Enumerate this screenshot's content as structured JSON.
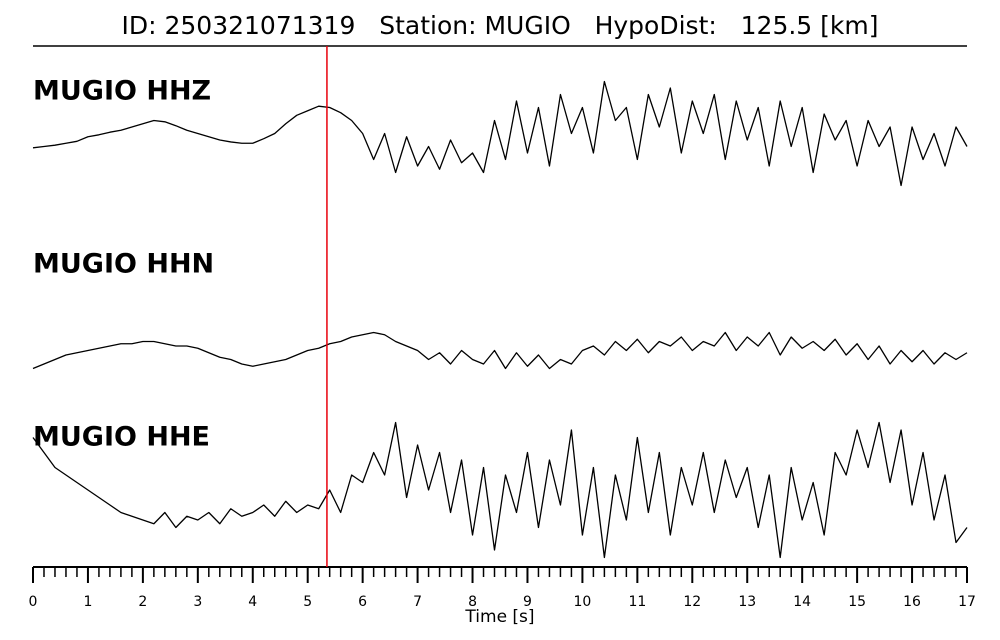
{
  "chart_data": {
    "type": "line",
    "title": "ID: 250321071319   Station: MUGIO   HypoDist:   125.5 [km]",
    "xlabel": "Time [s]",
    "xlim": [
      0,
      17
    ],
    "xticks": [
      0,
      1,
      2,
      3,
      4,
      5,
      6,
      7,
      8,
      9,
      10,
      11,
      12,
      13,
      14,
      15,
      16,
      17
    ],
    "x": [
      0,
      0.2,
      0.4,
      0.6,
      0.8,
      1,
      1.2,
      1.4,
      1.6,
      1.8,
      2,
      2.2,
      2.4,
      2.6,
      2.8,
      3,
      3.2,
      3.4,
      3.6,
      3.8,
      4,
      4.2,
      4.4,
      4.6,
      4.8,
      5,
      5.2,
      5.4,
      5.6,
      5.8,
      6,
      6.2,
      6.4,
      6.6,
      6.8,
      7,
      7.2,
      7.4,
      7.6,
      7.8,
      8,
      8.2,
      8.4,
      8.6,
      8.8,
      9,
      9.2,
      9.4,
      9.6,
      9.8,
      10,
      10.2,
      10.4,
      10.6,
      10.8,
      11,
      11.2,
      11.4,
      11.6,
      11.8,
      12,
      12.2,
      12.4,
      12.6,
      12.8,
      13,
      13.2,
      13.4,
      13.6,
      13.8,
      14,
      14.2,
      14.4,
      14.6,
      14.8,
      15,
      15.2,
      15.4,
      15.6,
      15.8,
      16,
      16.2,
      16.4,
      16.6,
      16.8,
      17
    ],
    "label_color": "#4c990c",
    "marker_time": 5.35,
    "marker_color": "#e8000b",
    "series": [
      {
        "name": "MUGIO HHZ",
        "color": "#000000",
        "ylim": [
          -1,
          1
        ],
        "values": [
          -0.12,
          -0.1,
          -0.08,
          -0.05,
          -0.02,
          0.05,
          0.08,
          0.12,
          0.15,
          0.2,
          0.25,
          0.3,
          0.28,
          0.22,
          0.15,
          0.1,
          0.05,
          0,
          -0.03,
          -0.05,
          -0.05,
          0.02,
          0.1,
          0.25,
          0.38,
          0.45,
          0.52,
          0.5,
          0.42,
          0.3,
          0.1,
          -0.3,
          0.1,
          -0.5,
          0.05,
          -0.4,
          -0.1,
          -0.45,
          0.0,
          -0.35,
          -0.2,
          -0.5,
          0.3,
          -0.3,
          0.6,
          -0.2,
          0.5,
          -0.4,
          0.7,
          0.1,
          0.5,
          -0.2,
          0.9,
          0.3,
          0.5,
          -0.3,
          0.7,
          0.2,
          0.8,
          -0.2,
          0.6,
          0.1,
          0.7,
          -0.3,
          0.6,
          0.0,
          0.5,
          -0.4,
          0.6,
          -0.1,
          0.5,
          -0.5,
          0.4,
          0.0,
          0.3,
          -0.4,
          0.3,
          -0.1,
          0.2,
          -0.7,
          0.2,
          -0.3,
          0.1,
          -0.4,
          0.2,
          -0.1
        ]
      },
      {
        "name": "MUGIO HHN",
        "color": "#000000",
        "ylim": [
          -1,
          1
        ],
        "values": [
          -0.3,
          -0.2,
          -0.1,
          0,
          0.05,
          0.1,
          0.15,
          0.2,
          0.25,
          0.25,
          0.3,
          0.3,
          0.25,
          0.2,
          0.2,
          0.15,
          0.05,
          -0.05,
          -0.1,
          -0.2,
          -0.25,
          -0.2,
          -0.15,
          -0.1,
          0,
          0.1,
          0.15,
          0.25,
          0.3,
          0.4,
          0.45,
          0.5,
          0.45,
          0.3,
          0.2,
          0.1,
          -0.1,
          0.05,
          -0.2,
          0.1,
          -0.1,
          -0.2,
          0.1,
          -0.3,
          0.05,
          -0.25,
          0,
          -0.3,
          -0.1,
          -0.2,
          0.1,
          0.2,
          0,
          0.3,
          0.1,
          0.35,
          0.05,
          0.3,
          0.2,
          0.4,
          0.1,
          0.3,
          0.2,
          0.5,
          0.1,
          0.4,
          0.2,
          0.5,
          0,
          0.4,
          0.15,
          0.3,
          0.1,
          0.35,
          0,
          0.25,
          -0.1,
          0.2,
          -0.2,
          0.1,
          -0.15,
          0.1,
          -0.2,
          0.05,
          -0.1,
          0.05
        ]
      },
      {
        "name": "MUGIO HHE",
        "color": "#000000",
        "ylim": [
          -1,
          1
        ],
        "values": [
          0.7,
          0.5,
          0.3,
          0.2,
          0.1,
          0.0,
          -0.1,
          -0.2,
          -0.3,
          -0.35,
          -0.4,
          -0.45,
          -0.3,
          -0.5,
          -0.35,
          -0.4,
          -0.3,
          -0.45,
          -0.25,
          -0.35,
          -0.3,
          -0.2,
          -0.35,
          -0.15,
          -0.3,
          -0.2,
          -0.25,
          0.0,
          -0.3,
          0.2,
          0.1,
          0.5,
          0.2,
          0.9,
          -0.1,
          0.6,
          0.0,
          0.5,
          -0.3,
          0.4,
          -0.6,
          0.3,
          -0.8,
          0.2,
          -0.3,
          0.5,
          -0.5,
          0.4,
          -0.2,
          0.8,
          -0.6,
          0.3,
          -0.9,
          0.2,
          -0.4,
          0.7,
          -0.3,
          0.5,
          -0.6,
          0.3,
          -0.2,
          0.5,
          -0.3,
          0.4,
          -0.1,
          0.3,
          -0.5,
          0.2,
          -0.9,
          0.3,
          -0.4,
          0.1,
          -0.6,
          0.5,
          0.2,
          0.8,
          0.3,
          0.9,
          0.1,
          0.8,
          -0.2,
          0.5,
          -0.4,
          0.2,
          -0.7,
          -0.5
        ]
      }
    ]
  }
}
